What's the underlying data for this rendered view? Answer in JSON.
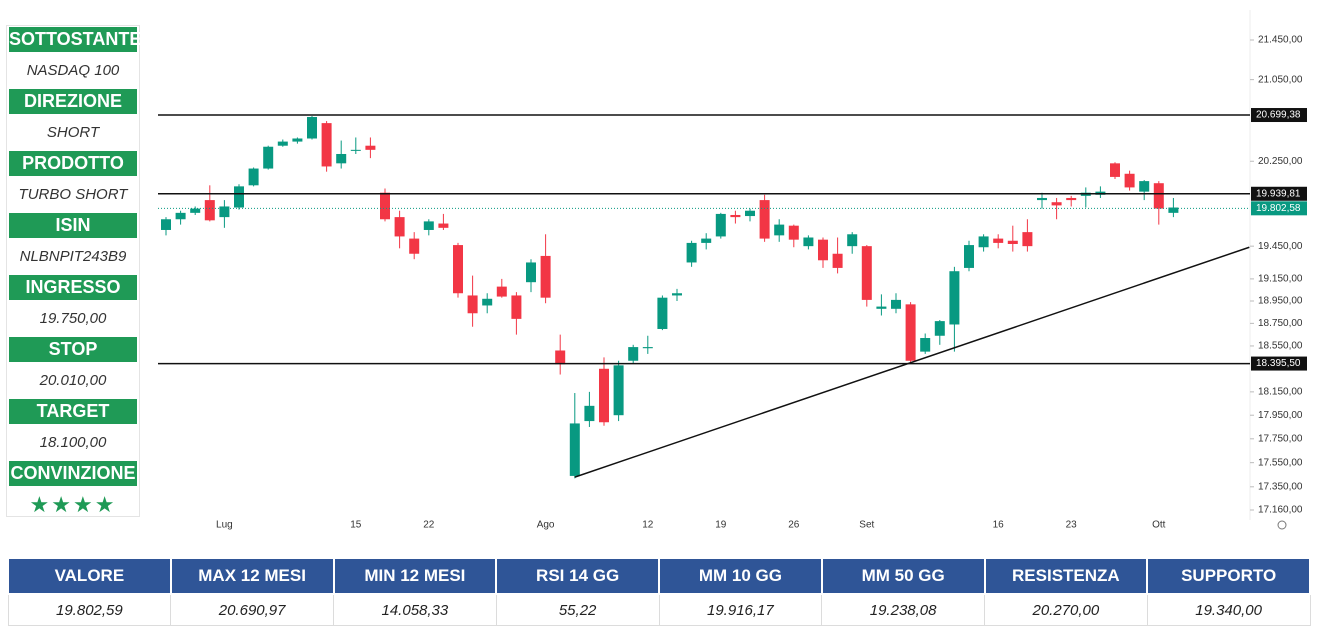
{
  "panel": [
    {
      "label": "SOTTOSTANTE",
      "value": "NASDAQ 100"
    },
    {
      "label": "DIREZIONE",
      "value": "SHORT"
    },
    {
      "label": "PRODOTTO",
      "value": "TURBO SHORT"
    },
    {
      "label": "ISIN",
      "value": "NLBNPIT243B9"
    },
    {
      "label": "INGRESSO",
      "value": "19.750,00"
    },
    {
      "label": "STOP",
      "value": "20.010,00"
    },
    {
      "label": "TARGET",
      "value": "18.100,00"
    },
    {
      "label": "CONVINZIONE",
      "value": "★★★★"
    }
  ],
  "chart_data": {
    "type": "candlestick",
    "log": true,
    "up_color": "#089981",
    "down_color": "#f23645",
    "categories": [
      null,
      null,
      null,
      null,
      "Lug",
      null,
      null,
      null,
      null,
      null,
      null,
      null,
      null,
      "15",
      null,
      null,
      null,
      null,
      "22",
      null,
      null,
      null,
      null,
      null,
      null,
      null,
      "Ago",
      null,
      null,
      null,
      null,
      null,
      null,
      "12",
      null,
      null,
      null,
      null,
      "19",
      null,
      null,
      null,
      null,
      "26",
      null,
      null,
      null,
      null,
      "Set",
      null,
      null,
      null,
      null,
      null,
      null,
      null,
      null,
      "16",
      null,
      null,
      null,
      null,
      "23",
      null,
      null,
      null,
      null,
      null,
      "Ott",
      null
    ],
    "open": [
      19600,
      19700,
      19760,
      19880,
      19720,
      19810,
      20020,
      20180,
      20400,
      20440,
      20470,
      20620,
      20230,
      20350,
      20400,
      19950,
      19720,
      19520,
      19600,
      19660,
      19460,
      19000,
      18910,
      19080,
      19000,
      19120,
      19360,
      18510,
      17440,
      17900,
      18350,
      17950,
      18420,
      18530,
      18700,
      19000,
      19300,
      19480,
      19540,
      19740,
      19730,
      19880,
      19550,
      19640,
      19450,
      19510,
      19380,
      19450,
      19450,
      18880,
      18880,
      18920,
      18500,
      18640,
      18740,
      19250,
      19440,
      19520,
      19500,
      19580,
      19880,
      19860,
      19900,
      19920,
      19930,
      20230,
      20130,
      19960,
      20040,
      19760
    ],
    "high": [
      19720,
      19780,
      19820,
      20020,
      19880,
      20030,
      20190,
      20400,
      20460,
      20480,
      20690,
      20640,
      20450,
      20480,
      20480,
      19990,
      19780,
      19580,
      19700,
      19750,
      19480,
      19180,
      19020,
      19150,
      19030,
      19330,
      19560,
      18650,
      18140,
      18150,
      18450,
      18420,
      18560,
      18640,
      19000,
      19060,
      19500,
      19570,
      19760,
      19780,
      19800,
      19930,
      19700,
      19650,
      19550,
      19530,
      19530,
      19580,
      19460,
      19010,
      19020,
      18940,
      18660,
      18780,
      19260,
      19500,
      19560,
      19560,
      19640,
      19700,
      19950,
      19900,
      19920,
      20000,
      20010,
      20240,
      20160,
      20070,
      20060,
      19900
    ],
    "low": [
      19550,
      19650,
      19740,
      19680,
      19620,
      19790,
      20010,
      20170,
      20390,
      20420,
      20460,
      20150,
      20180,
      20320,
      20280,
      19680,
      19430,
      19330,
      19550,
      19600,
      18980,
      18720,
      18840,
      18980,
      18650,
      19030,
      18930,
      18300,
      17420,
      17850,
      17860,
      17900,
      18400,
      18480,
      18690,
      18950,
      19260,
      19420,
      19520,
      19660,
      19680,
      19490,
      19490,
      19440,
      19420,
      19250,
      19200,
      19380,
      18900,
      18820,
      18840,
      18400,
      18480,
      18560,
      18500,
      19220,
      19400,
      19430,
      19400,
      19400,
      19800,
      19700,
      19820,
      19810,
      19900,
      20080,
      19970,
      19880,
      19650,
      19720
    ],
    "close": [
      19700,
      19760,
      19800,
      19690,
      19820,
      20010,
      20180,
      20390,
      20440,
      20470,
      20680,
      20200,
      20320,
      20360,
      20360,
      19700,
      19540,
      19380,
      19680,
      19620,
      19020,
      18840,
      18970,
      18990,
      18790,
      19300,
      18980,
      18390,
      17880,
      18030,
      17890,
      18380,
      18540,
      18540,
      18980,
      19020,
      19480,
      19520,
      19750,
      19720,
      19780,
      19520,
      19650,
      19510,
      19530,
      19320,
      19250,
      19560,
      18960,
      18900,
      18960,
      18420,
      18620,
      18770,
      19220,
      19460,
      19540,
      19480,
      19470,
      19450,
      19900,
      19830,
      19880,
      19950,
      19960,
      20100,
      20000,
      20060,
      19800,
      19810
    ],
    "ylim": [
      17095,
      21634
    ],
    "yticks": [
      {
        "value": 21450,
        "label": "21.450,00"
      },
      {
        "value": 21050,
        "label": "21.050,00"
      },
      {
        "value": 20250,
        "label": "20.250,00"
      },
      {
        "value": 19450,
        "label": "19.450,00"
      },
      {
        "value": 19150,
        "label": "19.150,00"
      },
      {
        "value": 18950,
        "label": "18.950,00"
      },
      {
        "value": 18750,
        "label": "18.750,00"
      },
      {
        "value": 18550,
        "label": "18.550,00"
      },
      {
        "value": 18150,
        "label": "18.150,00"
      },
      {
        "value": 17950,
        "label": "17.950,00"
      },
      {
        "value": 17750,
        "label": "17.750,00"
      },
      {
        "value": 17550,
        "label": "17.550,00"
      },
      {
        "value": 17350,
        "label": "17.350,00"
      },
      {
        "value": 17160,
        "label": "17.160,00"
      }
    ],
    "hlines": [
      {
        "value": 20699.38,
        "label": "20.699,38"
      },
      {
        "value": 19939.81,
        "label": "19.939,81"
      },
      {
        "value": 18395.5,
        "label": "18.395,50"
      }
    ],
    "last_price": {
      "value": 19802.58,
      "label": "19.802,58",
      "color": "#089981"
    },
    "trendline": {
      "x": [
        28,
        74.2
      ],
      "y": [
        17430,
        19440
      ]
    }
  },
  "table": {
    "headers": [
      "VALORE",
      "MAX 12 MESI",
      "MIN 12 MESI",
      "RSI 14 GG",
      "MM 10 GG",
      "MM 50 GG",
      "RESISTENZA",
      "SUPPORTO"
    ],
    "rows": [
      [
        "19.802,59",
        "20.690,97",
        "14.058,33",
        "55,22",
        "19.916,17",
        "19.238,08",
        "20.270,00",
        "19.340,00"
      ]
    ]
  }
}
